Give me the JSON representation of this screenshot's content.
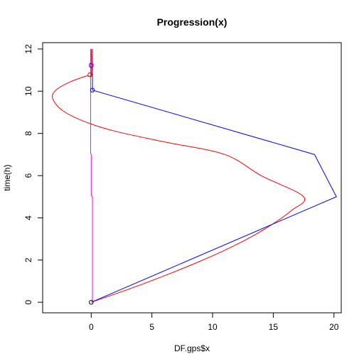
{
  "chart_data": {
    "type": "line",
    "title": "Progression(x)",
    "xlabel": "DF.gps$x",
    "ylabel": "time(h)",
    "xlim": [
      -4.0,
      20.6
    ],
    "ylim": [
      -0.5,
      12.3
    ],
    "xticks": [
      0,
      5,
      10,
      15,
      20
    ],
    "yticks": [
      0,
      2,
      4,
      6,
      8,
      10,
      12
    ],
    "grid": false,
    "series": [
      {
        "color": "#ff0000",
        "curve": true,
        "points": [
          [
            0,
            0
          ],
          [
            3,
            0.6
          ],
          [
            6,
            1.25
          ],
          [
            9,
            1.95
          ],
          [
            11.5,
            2.6
          ],
          [
            13.5,
            3.2
          ],
          [
            15.2,
            3.8
          ],
          [
            16.5,
            4.35
          ],
          [
            17.5,
            5
          ],
          [
            14,
            6
          ],
          [
            11,
            7
          ],
          [
            6,
            7.6
          ],
          [
            2,
            8.1
          ],
          [
            -0.5,
            8.55
          ],
          [
            -2.4,
            9.1
          ],
          [
            -3.2,
            9.7
          ],
          [
            -2.8,
            10.1
          ],
          [
            -1.7,
            10.45
          ],
          [
            -0.4,
            10.72
          ],
          [
            0,
            10.78
          ],
          [
            0,
            12
          ]
        ]
      },
      {
        "color": "#0000ff",
        "curve": false,
        "points": [
          [
            0,
            0
          ],
          [
            20.2,
            5
          ],
          [
            18.4,
            7
          ],
          [
            0.1,
            10.05
          ],
          [
            0.1,
            12
          ]
        ]
      },
      {
        "color": "#ff00ff",
        "curve": false,
        "points": [
          [
            0.1,
            0
          ],
          [
            0.1,
            5
          ],
          [
            0,
            5.05
          ],
          [
            0,
            7
          ],
          [
            -0.05,
            7.05
          ],
          [
            -0.05,
            12
          ]
        ]
      }
    ],
    "markers": [
      {
        "x": 0,
        "y": 0,
        "color": "#000000"
      },
      {
        "x": -0.1,
        "y": 10.78,
        "color": "#ff0000"
      },
      {
        "x": 0.1,
        "y": 10.05,
        "color": "#0000ff"
      },
      {
        "x": 0,
        "y": 11.22,
        "color": "#0000ff"
      },
      {
        "x": 0,
        "y": 11.25,
        "color": "#ff00ff"
      }
    ]
  }
}
